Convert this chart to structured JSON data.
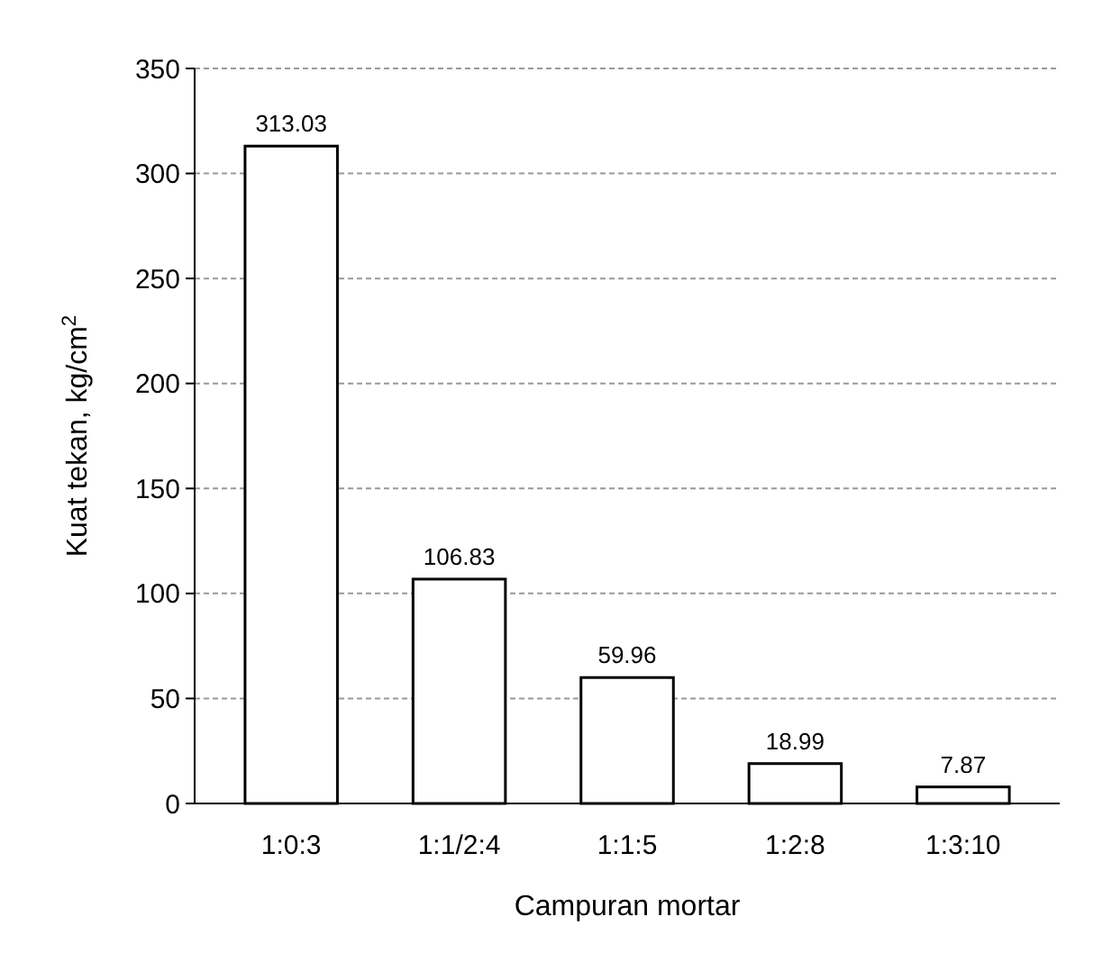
{
  "chart_data": {
    "type": "bar",
    "xlabel": "Campuran mortar",
    "ylabel": "Kuat tekan, kg/cm$^{2}$",
    "categories": [
      "1:0:3",
      "1:1/2:4",
      "1:1:5",
      "1:2:8",
      "1:3:10"
    ],
    "values": [
      313.03,
      106.83,
      59.96,
      18.99,
      7.87
    ],
    "color": "#ffffff",
    "ylim": [
      0,
      350
    ],
    "yticks": [
      0,
      50,
      100,
      150,
      200,
      250,
      300,
      350
    ],
    "grid": "y",
    "data_labels": true
  }
}
